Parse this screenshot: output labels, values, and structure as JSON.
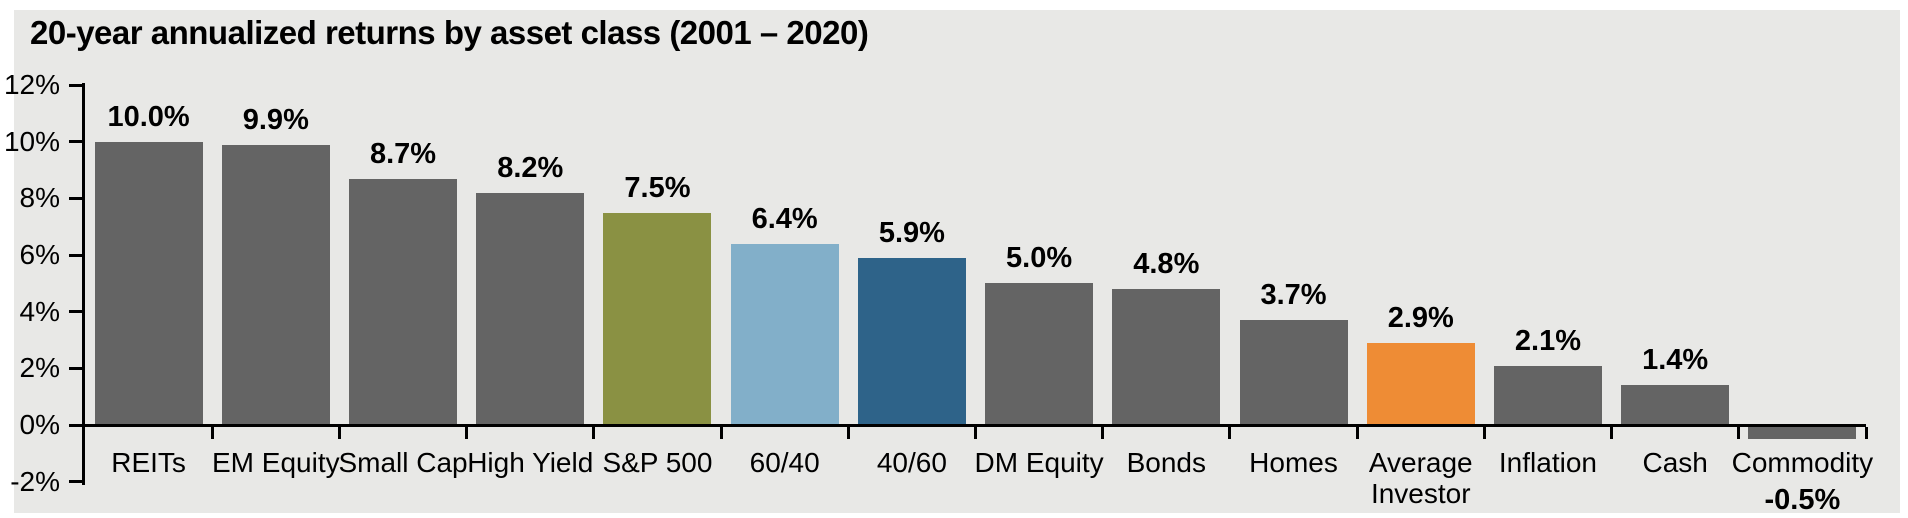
{
  "title": "20-year annualized returns by asset class (2001 – 2020)",
  "colors": {
    "panel_background": "#e8e8e6",
    "page_background": "#ffffff",
    "axis": "#000000",
    "text": "#000000",
    "default_bar": "#646464",
    "sp500_bar": "#8a9143",
    "sixty_forty_bar": "#82afc9",
    "forty_sixty_bar": "#2e6389",
    "average_investor_bar": "#ee8c35"
  },
  "chart_data": {
    "type": "bar",
    "title": "20-year annualized returns by asset class (2001 – 2020)",
    "xlabel": "",
    "ylabel": "",
    "categories": [
      "REITs",
      "EM Equity",
      "Small Cap",
      "High Yield",
      "S&P 500",
      "60/40",
      "40/60",
      "DM Equity",
      "Bonds",
      "Homes",
      "Average Investor",
      "Inflation",
      "Cash",
      "Commodity"
    ],
    "values": [
      10.0,
      9.9,
      8.7,
      8.2,
      7.5,
      6.4,
      5.9,
      5.0,
      4.8,
      3.7,
      2.9,
      2.1,
      1.4,
      -0.5
    ],
    "value_labels": [
      "10.0%",
      "9.9%",
      "8.7%",
      "8.2%",
      "7.5%",
      "6.4%",
      "5.9%",
      "5.0%",
      "4.8%",
      "3.7%",
      "2.9%",
      "2.1%",
      "1.4%",
      "-0.5%"
    ],
    "bar_colors": [
      "#646464",
      "#646464",
      "#646464",
      "#646464",
      "#8a9143",
      "#82afc9",
      "#2e6389",
      "#646464",
      "#646464",
      "#646464",
      "#ee8c35",
      "#646464",
      "#646464",
      "#646464"
    ],
    "ylim": [
      -2,
      12
    ],
    "ytick_interval": 2,
    "ytick_labels": [
      "12%",
      "10%",
      "8%",
      "6%",
      "4%",
      "2%",
      "0%",
      "-2%"
    ],
    "grid": false,
    "legend": false
  }
}
